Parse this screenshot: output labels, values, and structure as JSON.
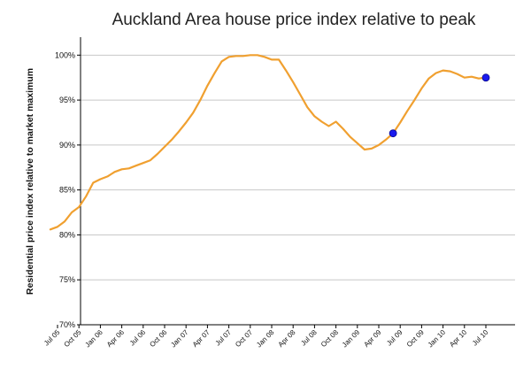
{
  "chart_data": {
    "type": "line",
    "title": "Auckland Area house price index relative to peak",
    "ylabel": "Residential price index relative to market maximum",
    "xlabel": "",
    "ylim": [
      70,
      102
    ],
    "yticks": [
      70,
      75,
      80,
      85,
      90,
      95,
      100
    ],
    "ytick_labels": [
      "70%",
      "75%",
      "80%",
      "85%",
      "90%",
      "95%",
      "100%"
    ],
    "grid": "horizontal",
    "xtick_labels": [
      "Jul 05",
      "Oct 05",
      "Jan 06",
      "Apr 06",
      "Jul 06",
      "Oct 06",
      "Jan 07",
      "Apr 07",
      "Jul 07",
      "Oct 07",
      "Jan 08",
      "Apr 08",
      "Jul 08",
      "Oct 08",
      "Jan 09",
      "Apr 09",
      "Jul 09",
      "Oct 09",
      "Jan 10",
      "Apr 10",
      "Jul 10"
    ],
    "x": [
      "2005-06",
      "2005-07",
      "2005-08",
      "2005-09",
      "2005-10",
      "2005-11",
      "2005-12",
      "2006-01",
      "2006-02",
      "2006-03",
      "2006-04",
      "2006-05",
      "2006-06",
      "2006-07",
      "2006-08",
      "2006-09",
      "2006-10",
      "2006-11",
      "2006-12",
      "2007-01",
      "2007-02",
      "2007-03",
      "2007-04",
      "2007-05",
      "2007-06",
      "2007-07",
      "2007-08",
      "2007-09",
      "2007-10",
      "2007-11",
      "2007-12",
      "2008-01",
      "2008-02",
      "2008-03",
      "2008-04",
      "2008-05",
      "2008-06",
      "2008-07",
      "2008-08",
      "2008-09",
      "2008-10",
      "2008-11",
      "2008-12",
      "2009-01",
      "2009-02",
      "2009-03",
      "2009-04",
      "2009-05",
      "2009-06",
      "2009-07",
      "2009-08",
      "2009-09",
      "2009-10",
      "2009-11",
      "2009-12",
      "2010-01",
      "2010-02",
      "2010-03",
      "2010-04",
      "2010-05",
      "2010-06",
      "2010-07"
    ],
    "series": [
      {
        "color": "#f0a030",
        "values": [
          80.6,
          80.9,
          81.5,
          82.5,
          83.1,
          84.3,
          85.8,
          86.2,
          86.5,
          87.0,
          87.3,
          87.4,
          87.7,
          88.0,
          88.3,
          89.0,
          89.8,
          90.6,
          91.5,
          92.5,
          93.6,
          95.0,
          96.6,
          98.0,
          99.3,
          99.8,
          99.9,
          99.9,
          100.0,
          100.0,
          99.8,
          99.5,
          99.5,
          98.3,
          97.0,
          95.6,
          94.2,
          93.2,
          92.6,
          92.1,
          92.6,
          91.8,
          90.9,
          90.2,
          89.5,
          89.6,
          90.0,
          90.6,
          91.3,
          92.5,
          93.8,
          95.0,
          96.3,
          97.4,
          98.0,
          98.3,
          98.2,
          97.9,
          97.5,
          97.6,
          97.4,
          97.5
        ]
      }
    ],
    "markers": [
      {
        "x": "2009-06",
        "y": 91.3,
        "color": "#1a1aee"
      },
      {
        "x": "2010-07",
        "y": 97.5,
        "color": "#1a1aee"
      }
    ]
  }
}
